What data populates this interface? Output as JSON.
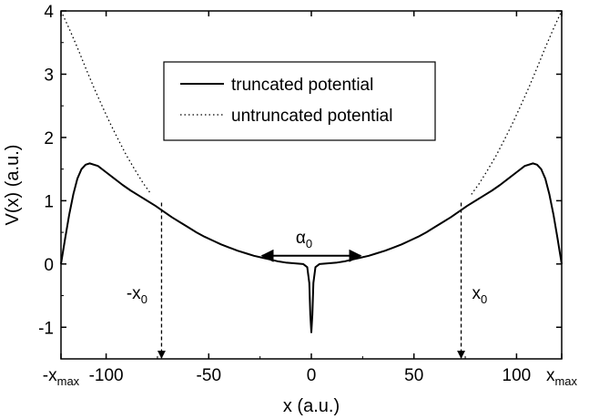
{
  "chart_data": {
    "type": "line",
    "xlabel": "x (a.u.)",
    "ylabel": "V(x) (a.u.)",
    "xlim": [
      -122,
      122
    ],
    "ylim": [
      -1.5,
      4
    ],
    "x_ticks": [
      {
        "value": -122,
        "label": "-x",
        "sub": "max"
      },
      {
        "value": -100,
        "label": "-100"
      },
      {
        "value": -50,
        "label": "-50"
      },
      {
        "value": 0,
        "label": "0"
      },
      {
        "value": 50,
        "label": "50"
      },
      {
        "value": 100,
        "label": "100"
      },
      {
        "value": 122,
        "label": "x",
        "sub": "max"
      }
    ],
    "y_ticks": [
      {
        "value": -1,
        "label": "-1"
      },
      {
        "value": 0,
        "label": "0"
      },
      {
        "value": 1,
        "label": "1"
      },
      {
        "value": 2,
        "label": "2"
      },
      {
        "value": 3,
        "label": "3"
      },
      {
        "value": 4,
        "label": "4"
      }
    ],
    "grid": false,
    "legend_position": "top-center",
    "series": [
      {
        "name": "truncated potential",
        "style": "solid",
        "x": [
          -122,
          -120,
          -118,
          -116,
          -114,
          -112,
          -110,
          -108,
          -104,
          -100,
          -96,
          -92,
          -88,
          -84,
          -80,
          -76,
          -72,
          -68,
          -64,
          -60,
          -56,
          -52,
          -48,
          -44,
          -40,
          -36,
          -32,
          -28,
          -24,
          -20,
          -16,
          -12,
          -8,
          -4,
          -2,
          -1,
          -0.5,
          0,
          0.5,
          1,
          2,
          4,
          8,
          12,
          16,
          20,
          24,
          28,
          32,
          36,
          40,
          44,
          48,
          52,
          56,
          60,
          64,
          68,
          72,
          76,
          80,
          84,
          88,
          92,
          96,
          100,
          104,
          108,
          110,
          112,
          114,
          116,
          118,
          120,
          122
        ],
        "y": [
          0.0,
          0.4,
          0.78,
          1.1,
          1.35,
          1.5,
          1.57,
          1.59,
          1.55,
          1.45,
          1.35,
          1.25,
          1.16,
          1.08,
          1.0,
          0.92,
          0.83,
          0.74,
          0.66,
          0.58,
          0.5,
          0.43,
          0.37,
          0.31,
          0.26,
          0.21,
          0.17,
          0.13,
          0.1,
          0.07,
          0.04,
          0.02,
          0.01,
          0.0,
          -0.05,
          -0.3,
          -0.8,
          -1.08,
          -0.8,
          -0.3,
          -0.05,
          0.0,
          0.01,
          0.02,
          0.04,
          0.07,
          0.1,
          0.13,
          0.17,
          0.21,
          0.26,
          0.31,
          0.37,
          0.43,
          0.5,
          0.58,
          0.66,
          0.74,
          0.83,
          0.92,
          1.0,
          1.08,
          1.16,
          1.25,
          1.35,
          1.45,
          1.55,
          1.59,
          1.57,
          1.5,
          1.35,
          1.1,
          0.78,
          0.4,
          0.0
        ]
      },
      {
        "name": "untruncated potential",
        "style": "dotted",
        "x": [
          -122,
          -118,
          -114,
          -110,
          -106,
          -102,
          -98,
          -94,
          -90,
          -86,
          -82,
          -78,
          78,
          82,
          86,
          90,
          94,
          98,
          102,
          106,
          110,
          114,
          118,
          122
        ],
        "y": [
          4.0,
          3.72,
          3.42,
          3.1,
          2.79,
          2.5,
          2.22,
          1.96,
          1.71,
          1.49,
          1.28,
          1.1,
          1.1,
          1.28,
          1.49,
          1.71,
          1.96,
          2.22,
          2.5,
          2.79,
          3.1,
          3.42,
          3.72,
          4.0
        ]
      }
    ],
    "annotations": {
      "alpha": {
        "label": "α",
        "sub": "0",
        "x_from": -24,
        "x_to": 24,
        "y": 0.13
      },
      "minus_x0": {
        "label": "-x",
        "sub": "0",
        "x": -73,
        "y_from": 0.97,
        "y_to": -1.5,
        "label_x": -85,
        "label_y": -0.55
      },
      "plus_x0": {
        "label": "x",
        "sub": "0",
        "x": 73,
        "y_from": 0.97,
        "y_to": -1.5,
        "label_x": 82,
        "label_y": -0.55
      }
    }
  }
}
